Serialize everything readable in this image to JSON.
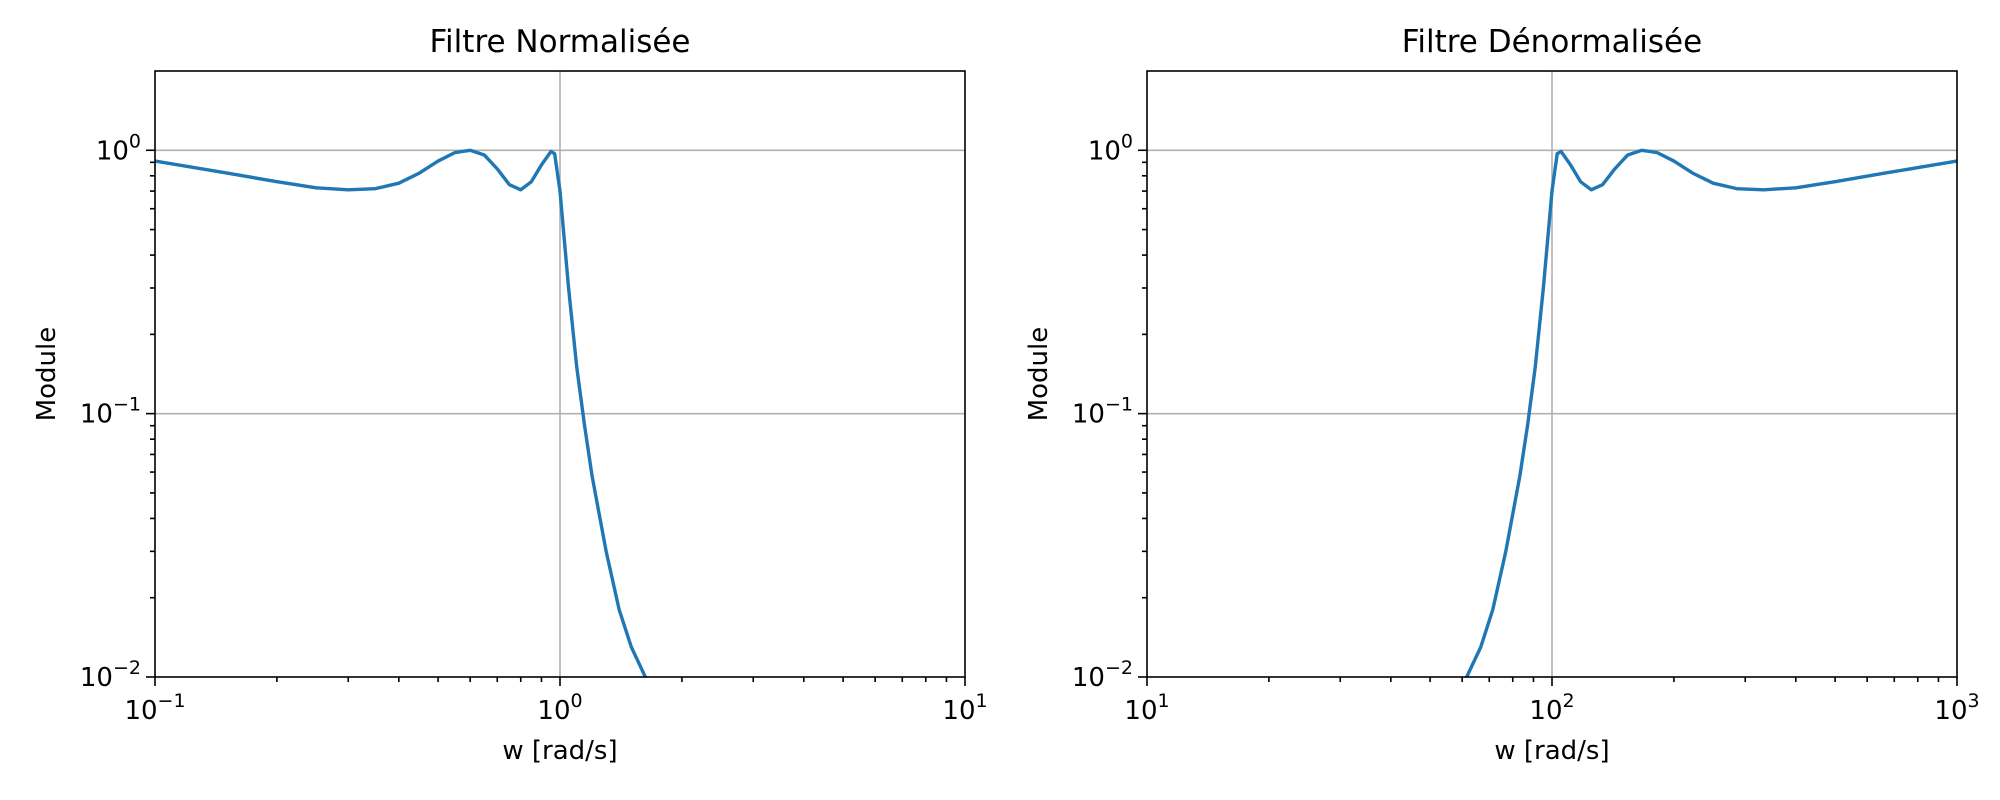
{
  "chart_data": [
    {
      "type": "line",
      "title": "Filtre Normalisée",
      "xlabel": "w [rad/s]",
      "ylabel": "Module",
      "xscale": "log",
      "yscale": "log",
      "xlim": [
        0.1,
        10
      ],
      "ylim": [
        0.01,
        2
      ],
      "grid": true,
      "color": "#1f77b4",
      "xticks": [
        {
          "value": 0.1,
          "base": "10",
          "exp": "−1"
        },
        {
          "value": 1,
          "base": "10",
          "exp": "0"
        },
        {
          "value": 10,
          "base": "10",
          "exp": "1"
        }
      ],
      "yticks": [
        {
          "value": 0.01,
          "base": "10",
          "exp": "−2"
        },
        {
          "value": 0.1,
          "base": "10",
          "exp": "−1"
        },
        {
          "value": 1,
          "base": "10",
          "exp": "0"
        }
      ],
      "series": [
        {
          "x": [
            0.1,
            0.15,
            0.2,
            0.25,
            0.3,
            0.35,
            0.4,
            0.45,
            0.5,
            0.55,
            0.6,
            0.65,
            0.7,
            0.75,
            0.8,
            0.85,
            0.9,
            0.95,
            0.97,
            1.0,
            1.05,
            1.1,
            1.15,
            1.2,
            1.3,
            1.4,
            1.5,
            1.65
          ],
          "y": [
            0.91,
            0.82,
            0.76,
            0.72,
            0.708,
            0.715,
            0.75,
            0.82,
            0.91,
            0.98,
            1.0,
            0.96,
            0.85,
            0.74,
            0.708,
            0.76,
            0.88,
            0.99,
            0.97,
            0.7,
            0.3,
            0.15,
            0.09,
            0.058,
            0.03,
            0.018,
            0.013,
            0.0095
          ]
        }
      ]
    },
    {
      "type": "line",
      "title": "Filtre Dénormalisée",
      "xlabel": "w [rad/s]",
      "ylabel": "Module",
      "xscale": "log",
      "yscale": "log",
      "xlim": [
        10,
        1000
      ],
      "ylim": [
        0.01,
        2
      ],
      "grid": true,
      "color": "#1f77b4",
      "xticks": [
        {
          "value": 10,
          "base": "10",
          "exp": "1"
        },
        {
          "value": 100,
          "base": "10",
          "exp": "2"
        },
        {
          "value": 1000,
          "base": "10",
          "exp": "3"
        }
      ],
      "yticks": [
        {
          "value": 0.01,
          "base": "10",
          "exp": "−2"
        },
        {
          "value": 0.1,
          "base": "10",
          "exp": "−1"
        },
        {
          "value": 1,
          "base": "10",
          "exp": "0"
        }
      ],
      "series": [
        {
          "x": [
            60.6,
            66.7,
            71.4,
            76.9,
            83.3,
            87,
            90.9,
            95.2,
            100,
            103,
            105.3,
            111.1,
            117.6,
            125,
            133.3,
            142.9,
            153.8,
            166.7,
            181.8,
            200,
            222.2,
            250,
            285.7,
            333.3,
            400,
            500,
            666.7,
            1000
          ],
          "y": [
            0.0095,
            0.013,
            0.018,
            0.03,
            0.058,
            0.09,
            0.15,
            0.3,
            0.7,
            0.97,
            0.99,
            0.88,
            0.76,
            0.708,
            0.74,
            0.85,
            0.96,
            1.0,
            0.98,
            0.91,
            0.82,
            0.75,
            0.715,
            0.708,
            0.72,
            0.76,
            0.82,
            0.91
          ]
        }
      ]
    }
  ]
}
